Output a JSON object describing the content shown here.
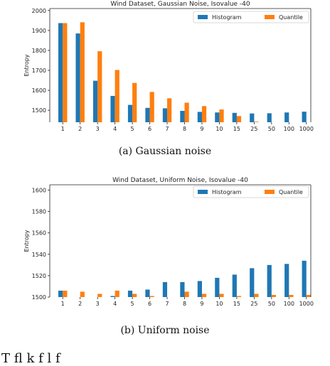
{
  "chart_data": [
    {
      "type": "bar",
      "title": "Wind Dataset, Gaussian Noise, Isovalue -40",
      "ylabel": "Entropy",
      "xlabel": "",
      "ylim": [
        1440,
        2010
      ],
      "yticks": [
        1500,
        1600,
        1700,
        1800,
        1900,
        2000
      ],
      "categories": [
        "1",
        "2",
        "3",
        "4",
        "5",
        "6",
        "7",
        "8",
        "9",
        "10",
        "15",
        "25",
        "50",
        "100",
        "1000"
      ],
      "series": [
        {
          "name": "Histogram",
          "color": "#1f77b4",
          "values": [
            1937,
            1885,
            1648,
            1572,
            1527,
            1512,
            1510,
            1497,
            1492,
            1489,
            1487,
            1484,
            1485,
            1489,
            1493
          ]
        },
        {
          "name": "Quantile",
          "color": "#ff7f0e",
          "values": [
            1937,
            1941,
            1796,
            1702,
            1637,
            1592,
            1560,
            1538,
            1521,
            1504,
            1471,
            1443,
            null,
            null,
            null
          ]
        }
      ],
      "legend": "top-right",
      "grid": false,
      "caption": "(a) Gaussian noise"
    },
    {
      "type": "bar",
      "title": "Wind Dataset, Uniform Noise, Isovalue -40",
      "ylabel": "Entropy",
      "xlabel": "",
      "ylim": [
        1500,
        1605
      ],
      "yticks": [
        1500,
        1520,
        1540,
        1560,
        1580,
        1600
      ],
      "categories": [
        "1",
        "2",
        "3",
        "4",
        "5",
        "6",
        "7",
        "8",
        "9",
        "10",
        "15",
        "25",
        "50",
        "100",
        "1000"
      ],
      "series": [
        {
          "name": "Histogram",
          "color": "#1f77b4",
          "values": [
            1506,
            null,
            null,
            1501,
            1506,
            1507,
            1514,
            1514,
            1515,
            1518,
            1521,
            1527,
            1530,
            1531,
            1534
          ]
        },
        {
          "name": "Quantile",
          "color": "#ff7f0e",
          "values": [
            1506,
            1505,
            1503,
            1506,
            1503,
            1501,
            null,
            1505,
            1503,
            1503,
            1501,
            1503,
            1502,
            1502,
            1502
          ]
        }
      ],
      "legend": "top-right",
      "grid": false,
      "caption": "(b) Uniform noise"
    }
  ],
  "footer_text": "T     fl              k              f                                          l      f"
}
